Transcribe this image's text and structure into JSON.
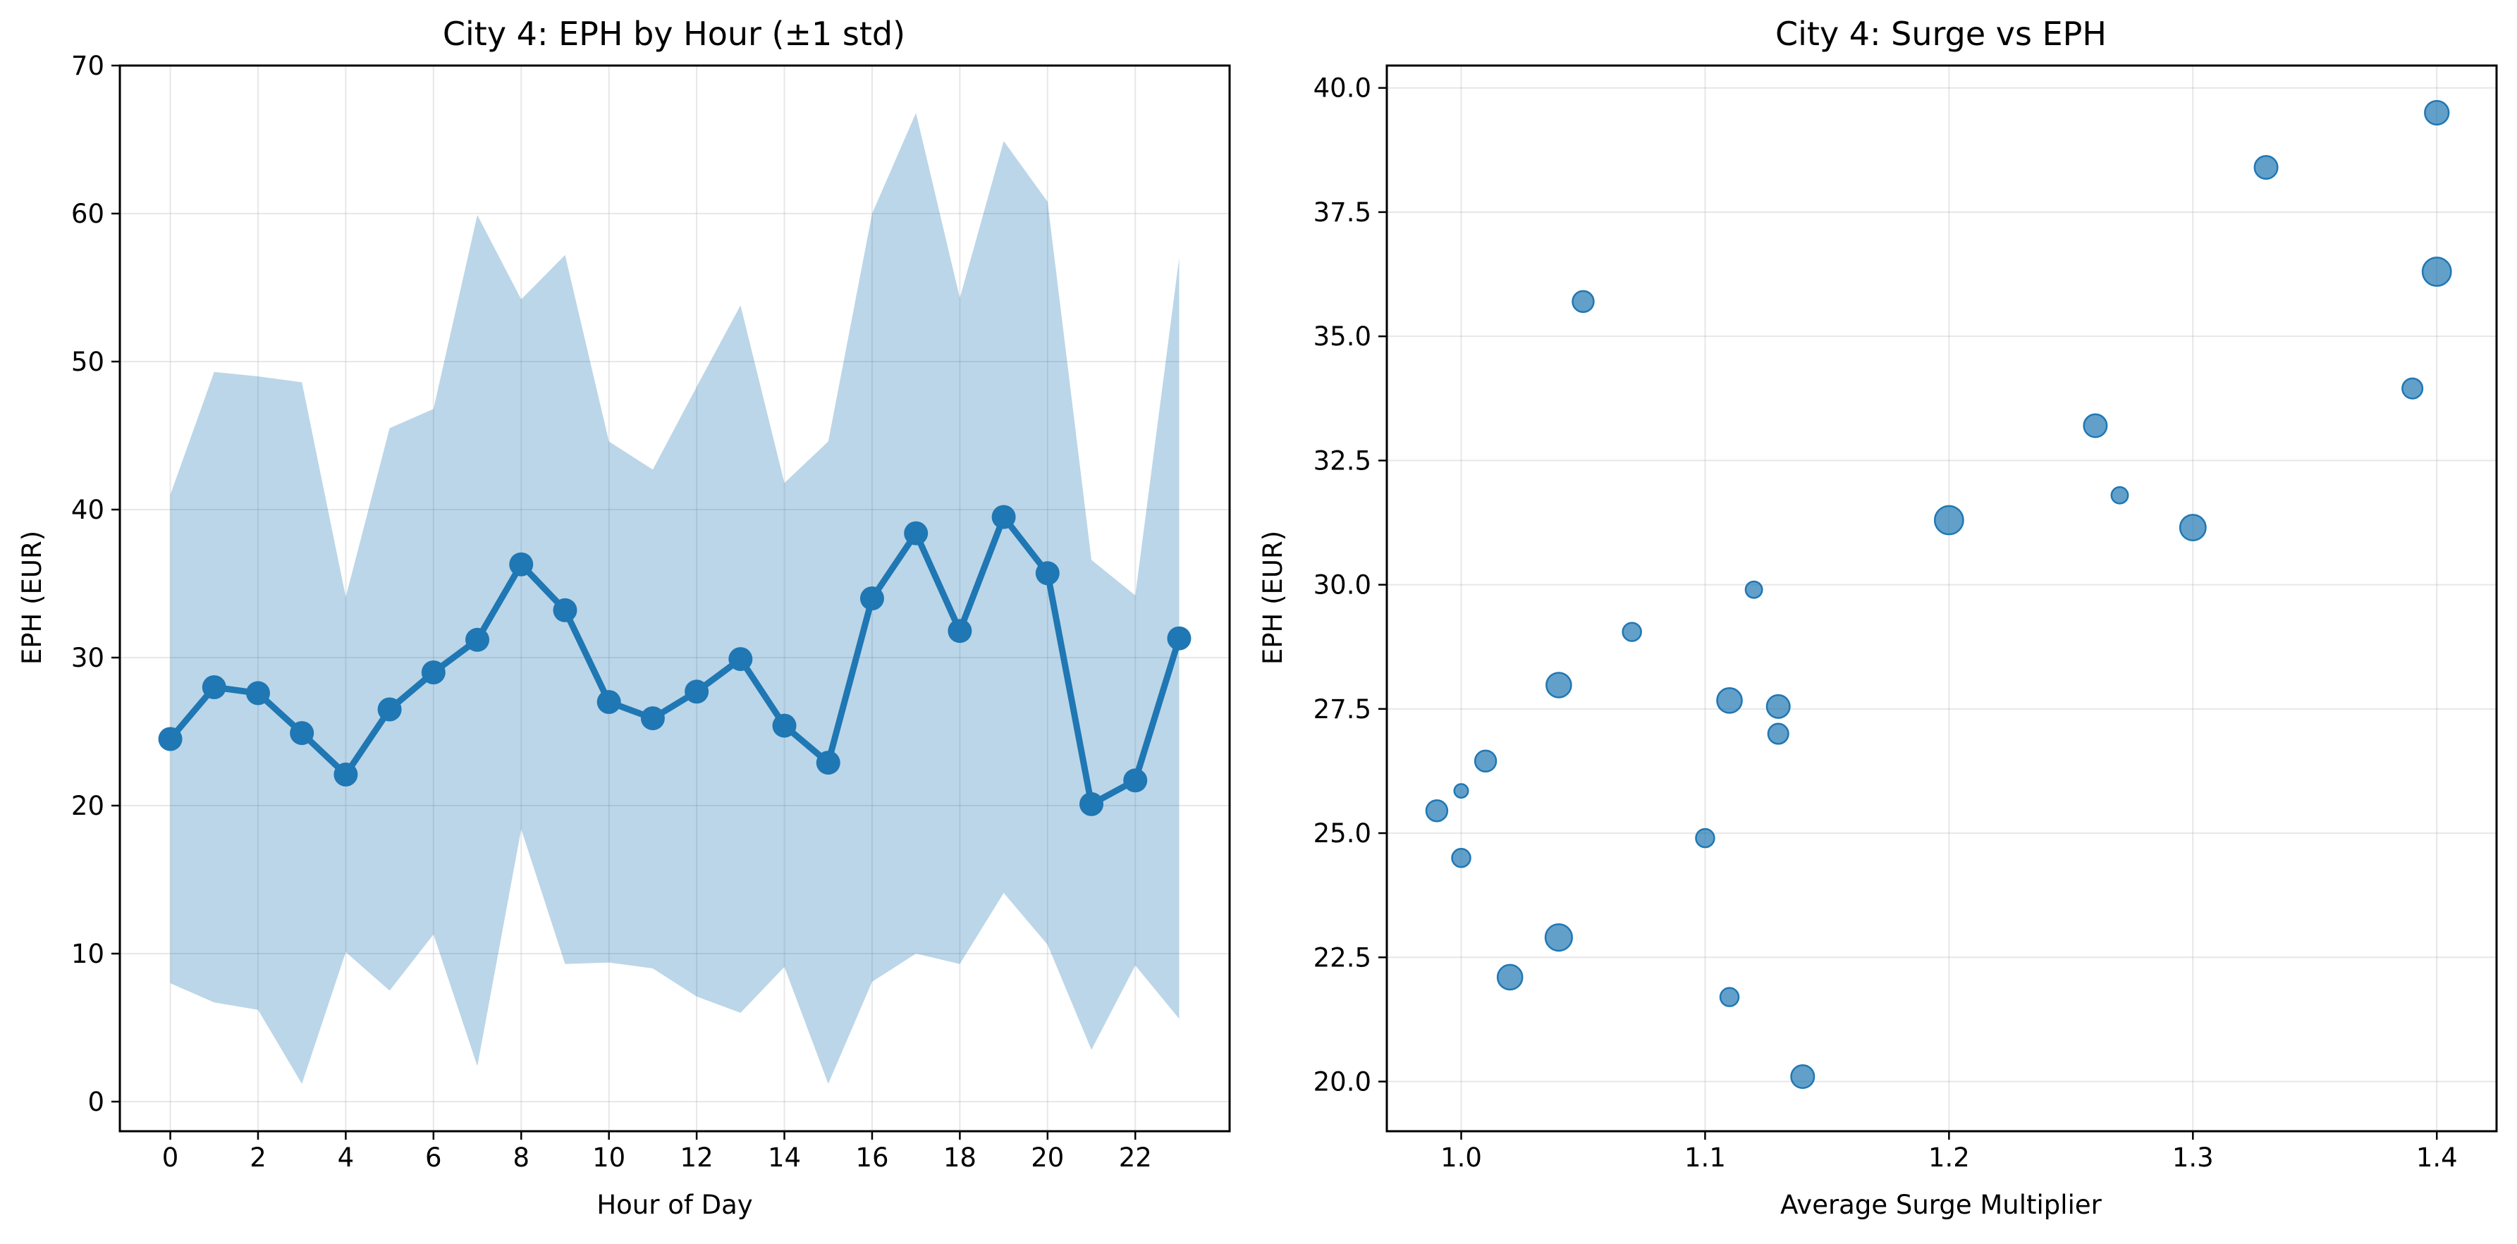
{
  "colors": {
    "series": "#1f77b4",
    "band": "#1f77b4",
    "grid": "#b0b0b0",
    "axis": "#000000"
  },
  "chart_data": [
    {
      "type": "line",
      "title": "City 4: EPH by Hour (±1 std)",
      "xlabel": "Hour of Day",
      "ylabel": "EPH (EUR)",
      "xlim": [
        -1.15,
        24.15
      ],
      "ylim": [
        -2,
        70
      ],
      "xticks": [
        0,
        2,
        4,
        6,
        8,
        10,
        12,
        14,
        16,
        18,
        20,
        22
      ],
      "yticks": [
        0,
        10,
        20,
        30,
        40,
        50,
        60,
        70
      ],
      "grid": true,
      "x": [
        0,
        1,
        2,
        3,
        4,
        5,
        6,
        7,
        8,
        9,
        10,
        11,
        12,
        13,
        14,
        15,
        16,
        17,
        18,
        19,
        20,
        21,
        22,
        23
      ],
      "series": [
        {
          "values": [
            24.5,
            28.0,
            27.6,
            24.9,
            22.1,
            26.5,
            29.0,
            31.2,
            36.3,
            33.2,
            27.0,
            25.9,
            27.7,
            29.9,
            25.4,
            22.9,
            34.0,
            38.4,
            31.8,
            39.5,
            35.7,
            20.1,
            21.7,
            31.3
          ],
          "band_upper": [
            41.0,
            49.3,
            49.0,
            48.6,
            34.1,
            45.5,
            46.8,
            59.9,
            54.2,
            57.2,
            44.6,
            42.7,
            48.3,
            53.8,
            41.8,
            44.6,
            60.0,
            66.8,
            54.3,
            64.9,
            60.8,
            36.6,
            34.2,
            57.0
          ],
          "band_lower": [
            8.0,
            6.7,
            6.2,
            1.2,
            10.1,
            7.5,
            11.3,
            2.4,
            18.4,
            9.3,
            9.4,
            9.0,
            7.1,
            6.0,
            9.1,
            1.2,
            8.1,
            10.0,
            9.3,
            14.1,
            10.6,
            3.5,
            9.2,
            5.6
          ]
        }
      ]
    },
    {
      "type": "scatter",
      "title": "City 4: Surge vs EPH",
      "xlabel": "Average Surge Multiplier",
      "ylabel": "EPH (EUR)",
      "xlim": [
        0.9695,
        1.4245
      ],
      "ylim": [
        19.0,
        40.45
      ],
      "xticks": [
        1.0,
        1.1,
        1.2,
        1.3,
        1.4
      ],
      "xtick_labels": [
        "1.0",
        "1.1",
        "1.2",
        "1.3",
        "1.4"
      ],
      "yticks": [
        20.0,
        22.5,
        25.0,
        27.5,
        30.0,
        32.5,
        35.0,
        37.5,
        40.0
      ],
      "ytick_labels": [
        "20.0",
        "22.5",
        "25.0",
        "27.5",
        "30.0",
        "32.5",
        "35.0",
        "37.5",
        "40.0"
      ],
      "grid": true,
      "points": [
        {
          "x": 1.0,
          "y": 24.5,
          "size": 2.0
        },
        {
          "x": 1.0,
          "y": 25.85,
          "size": 1.5
        },
        {
          "x": 0.99,
          "y": 25.45,
          "size": 2.3
        },
        {
          "x": 1.01,
          "y": 26.45,
          "size": 2.3
        },
        {
          "x": 1.02,
          "y": 22.1,
          "size": 2.7
        },
        {
          "x": 1.04,
          "y": 27.98,
          "size": 2.7
        },
        {
          "x": 1.04,
          "y": 22.9,
          "size": 2.9
        },
        {
          "x": 1.05,
          "y": 35.7,
          "size": 2.3
        },
        {
          "x": 1.07,
          "y": 29.05,
          "size": 2.0
        },
        {
          "x": 1.1,
          "y": 24.9,
          "size": 2.0
        },
        {
          "x": 1.11,
          "y": 27.67,
          "size": 2.7
        },
        {
          "x": 1.11,
          "y": 21.7,
          "size": 2.0
        },
        {
          "x": 1.12,
          "y": 29.9,
          "size": 1.8
        },
        {
          "x": 1.13,
          "y": 27.55,
          "size": 2.5
        },
        {
          "x": 1.13,
          "y": 27.0,
          "size": 2.2
        },
        {
          "x": 1.14,
          "y": 20.1,
          "size": 2.5
        },
        {
          "x": 1.2,
          "y": 31.3,
          "size": 3.1
        },
        {
          "x": 1.26,
          "y": 33.2,
          "size": 2.5
        },
        {
          "x": 1.27,
          "y": 31.8,
          "size": 1.8
        },
        {
          "x": 1.3,
          "y": 31.15,
          "size": 2.8
        },
        {
          "x": 1.33,
          "y": 38.4,
          "size": 2.5
        },
        {
          "x": 1.39,
          "y": 33.95,
          "size": 2.2
        },
        {
          "x": 1.4,
          "y": 39.5,
          "size": 2.6
        },
        {
          "x": 1.4,
          "y": 36.3,
          "size": 3.1
        }
      ]
    }
  ]
}
